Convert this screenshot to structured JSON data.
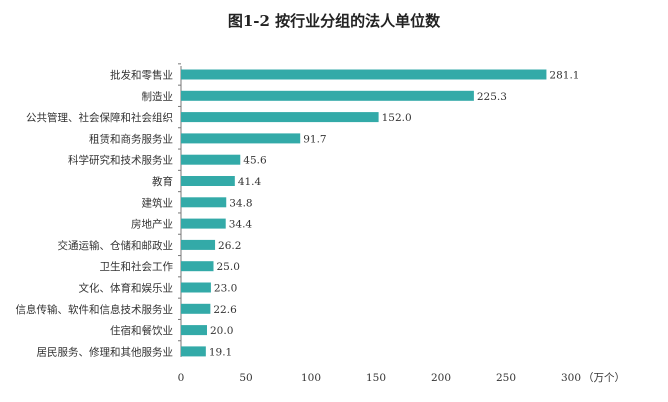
{
  "chart_data": {
    "type": "bar",
    "orientation": "horizontal",
    "title": "图1-2 按行业分组的法人单位数",
    "categories": [
      "批发和零售业",
      "制造业",
      "公共管理、社会保障和社会组织",
      "租赁和商务服务业",
      "科学研究和技术服务业",
      "教育",
      "建筑业",
      "房地产业",
      "交通运输、仓储和邮政业",
      "卫生和社会工作",
      "文化、体育和娱乐业",
      "信息传输、软件和信息技术服务业",
      "住宿和餐饮业",
      "居民服务、修理和其他服务业"
    ],
    "values": [
      281.1,
      225.3,
      152.0,
      91.7,
      45.6,
      41.4,
      34.8,
      34.4,
      26.2,
      25.0,
      23.0,
      22.6,
      20.0,
      19.1
    ],
    "value_labels": [
      "281.1",
      "225.3",
      "152.0",
      "91.7",
      "45.6",
      "41.4",
      "34.8",
      "34.4",
      "26.2",
      "25.0",
      "23.0",
      "22.6",
      "20.0",
      "19.1"
    ],
    "xticks": [
      "0",
      "50",
      "100",
      "150",
      "200",
      "250",
      "300"
    ],
    "xunit": "（万个）",
    "xlim": [
      0,
      300
    ],
    "grid": false,
    "bar_color": "#33AAA8"
  }
}
